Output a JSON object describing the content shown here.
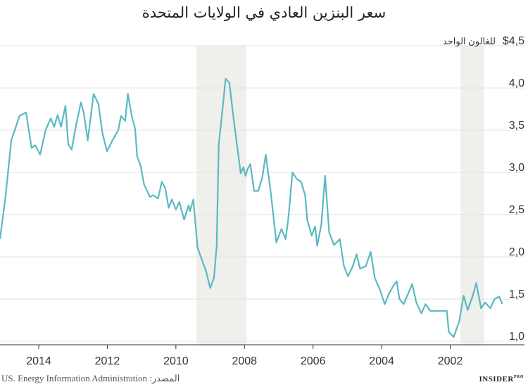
{
  "chart_data": {
    "type": "line",
    "title": "سعر البنزين العادي في الولايات المتحدة",
    "y_label": "للغالون الواحد",
    "source": "المصدر: US. Energy Information Administration",
    "brand": "INSIDER",
    "brand_sub": "PRO",
    "x": [
      2015.13,
      2014.97,
      2014.8,
      2014.56,
      2014.37,
      2014.21,
      2014.1,
      2013.96,
      2013.8,
      2013.65,
      2013.55,
      2013.45,
      2013.35,
      2013.22,
      2013.14,
      2013.04,
      2012.92,
      2012.77,
      2012.69,
      2012.57,
      2012.4,
      2012.26,
      2012.14,
      2012.01,
      2011.85,
      2011.68,
      2011.6,
      2011.48,
      2011.4,
      2011.29,
      2011.19,
      2011.13,
      2011.03,
      2010.93,
      2010.76,
      2010.66,
      2010.52,
      2010.41,
      2010.31,
      2010.21,
      2010.12,
      2010.0,
      2009.9,
      2009.76,
      2009.63,
      2009.59,
      2009.49,
      2009.37,
      2009.22,
      2009.12,
      2009.0,
      2008.89,
      2008.81,
      2008.75,
      2008.65,
      2008.55,
      2008.44,
      2008.34,
      2008.22,
      2008.11,
      2008.03,
      2007.97,
      2007.91,
      2007.83,
      2007.72,
      2007.6,
      2007.48,
      2007.38,
      2007.23,
      2007.07,
      2006.92,
      2006.8,
      2006.72,
      2006.6,
      2006.47,
      2006.35,
      2006.23,
      2006.17,
      2006.04,
      2005.94,
      2005.88,
      2005.76,
      2005.65,
      2005.53,
      2005.39,
      2005.22,
      2005.1,
      2004.98,
      2004.85,
      2004.73,
      2004.63,
      2004.46,
      2004.32,
      2004.2,
      2004.05,
      2003.91,
      2003.79,
      2003.64,
      2003.56,
      2003.48,
      2003.36,
      2003.23,
      2003.11,
      2002.99,
      2002.84,
      2002.72,
      2002.58,
      2002.1,
      2002.04,
      2001.9,
      2001.74,
      2001.61,
      2001.49,
      2001.35,
      2001.24,
      2001.1,
      2000.98,
      2000.83,
      2000.71,
      2000.57,
      2000.48
    ],
    "series": [
      {
        "name": "price",
        "color": "#5bb9c1",
        "values": [
          2.21,
          2.71,
          3.38,
          3.67,
          3.71,
          3.29,
          3.32,
          3.21,
          3.5,
          3.64,
          3.54,
          3.68,
          3.54,
          3.79,
          3.33,
          3.27,
          3.54,
          3.83,
          3.71,
          3.38,
          3.93,
          3.81,
          3.46,
          3.25,
          3.38,
          3.5,
          3.67,
          3.61,
          3.93,
          3.67,
          3.52,
          3.19,
          3.08,
          2.86,
          2.71,
          2.73,
          2.69,
          2.89,
          2.81,
          2.58,
          2.68,
          2.56,
          2.65,
          2.44,
          2.61,
          2.54,
          2.68,
          2.11,
          1.94,
          1.83,
          1.63,
          1.75,
          2.13,
          3.33,
          3.71,
          4.11,
          4.06,
          3.71,
          3.33,
          2.99,
          3.06,
          2.96,
          3.04,
          3.1,
          2.78,
          2.78,
          2.94,
          3.21,
          2.75,
          2.17,
          2.33,
          2.21,
          2.46,
          3.0,
          2.92,
          2.89,
          2.73,
          2.44,
          2.25,
          2.36,
          2.13,
          2.38,
          2.96,
          2.29,
          2.14,
          2.21,
          1.89,
          1.77,
          1.88,
          2.03,
          1.86,
          1.89,
          2.06,
          1.75,
          1.61,
          1.44,
          1.56,
          1.67,
          1.71,
          1.5,
          1.44,
          1.56,
          1.68,
          1.46,
          1.33,
          1.44,
          1.36,
          1.36,
          1.11,
          1.05,
          1.23,
          1.54,
          1.37,
          1.53,
          1.69,
          1.39,
          1.46,
          1.39,
          1.5,
          1.53,
          1.44
        ]
      }
    ],
    "shaded_periods": [
      [
        2009.4,
        2007.94
      ],
      [
        2001.7,
        2001.02
      ]
    ],
    "shade_color": "#efefec",
    "xlim": [
      2015.13,
      2000.45
    ],
    "xticks": [
      2014,
      2012,
      2010,
      2008,
      2006,
      2004,
      2002
    ],
    "ylim": [
      1,
      4.5
    ],
    "yticks": [
      {
        "value": 1,
        "label": "1,0"
      },
      {
        "value": 1.5,
        "label": "1,5"
      },
      {
        "value": 2,
        "label": "2,0"
      },
      {
        "value": 2.5,
        "label": "2,5"
      },
      {
        "value": 3,
        "label": "3,0"
      },
      {
        "value": 3.5,
        "label": "3,5"
      },
      {
        "value": 4,
        "label": "4,0"
      },
      {
        "value": 4.5,
        "label": "$4,5"
      }
    ],
    "grid": true
  }
}
